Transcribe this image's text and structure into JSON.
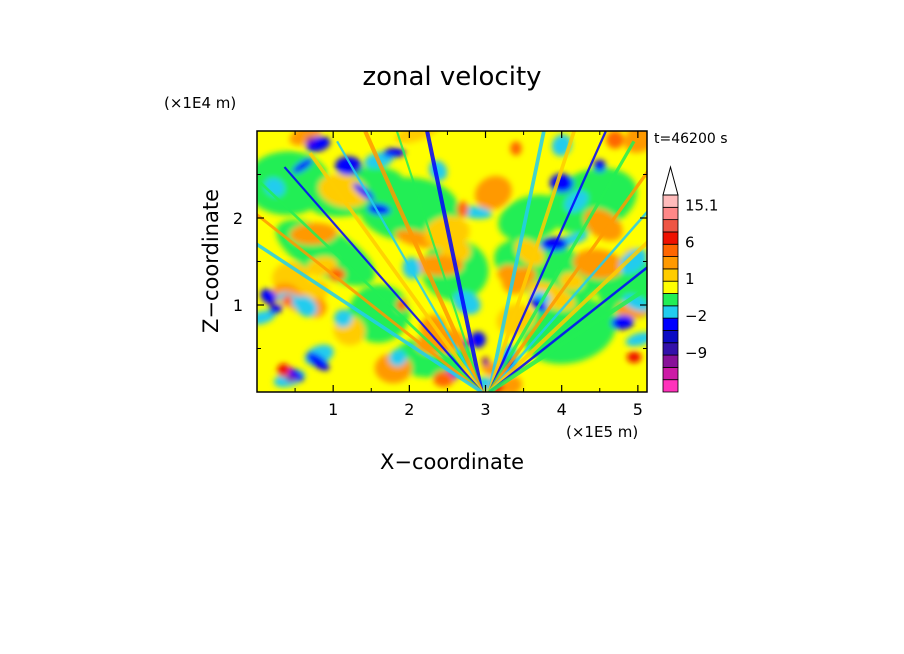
{
  "chart_data": {
    "type": "heatmap",
    "title": "zonal velocity",
    "xlabel": "X−coordinate",
    "ylabel": "Z−coordinate",
    "x_multiplier": "(×1E5 m)",
    "y_multiplier": "(×1E4 m)",
    "time_label": "t=46200 s",
    "xlim": [
      0,
      5.12
    ],
    "ylim": [
      0,
      3.0
    ],
    "x_ticks": [
      {
        "value": 1,
        "label": "1"
      },
      {
        "value": 2,
        "label": "2"
      },
      {
        "value": 3,
        "label": "3"
      },
      {
        "value": 4,
        "label": "4"
      },
      {
        "value": 5,
        "label": "5"
      }
    ],
    "y_ticks": [
      {
        "value": 1,
        "label": "1"
      },
      {
        "value": 2,
        "label": "2"
      }
    ],
    "colorbar": {
      "levels": [
        {
          "color": "#ff33bb",
          "label": ""
        },
        {
          "color": "#cc1aa6",
          "label": ""
        },
        {
          "color": "#881199",
          "label": "−9"
        },
        {
          "color": "#3311aa",
          "label": ""
        },
        {
          "color": "#0b0bc4",
          "label": ""
        },
        {
          "color": "#0000ff",
          "label": "−2"
        },
        {
          "color": "#22ccee",
          "label": ""
        },
        {
          "color": "#22ee55",
          "label": ""
        },
        {
          "color": "#ffff00",
          "label": "1"
        },
        {
          "color": "#ffcc00",
          "label": ""
        },
        {
          "color": "#ff9900",
          "label": ""
        },
        {
          "color": "#ff6600",
          "label": "6"
        },
        {
          "color": "#ee1100",
          "label": ""
        },
        {
          "color": "#ee5544",
          "label": ""
        },
        {
          "color": "#ff8888",
          "label": "15.1"
        },
        {
          "color": "#ffbbbb",
          "label": ""
        }
      ],
      "extend": "max"
    },
    "grid": false,
    "legend": "colorbar-right"
  }
}
